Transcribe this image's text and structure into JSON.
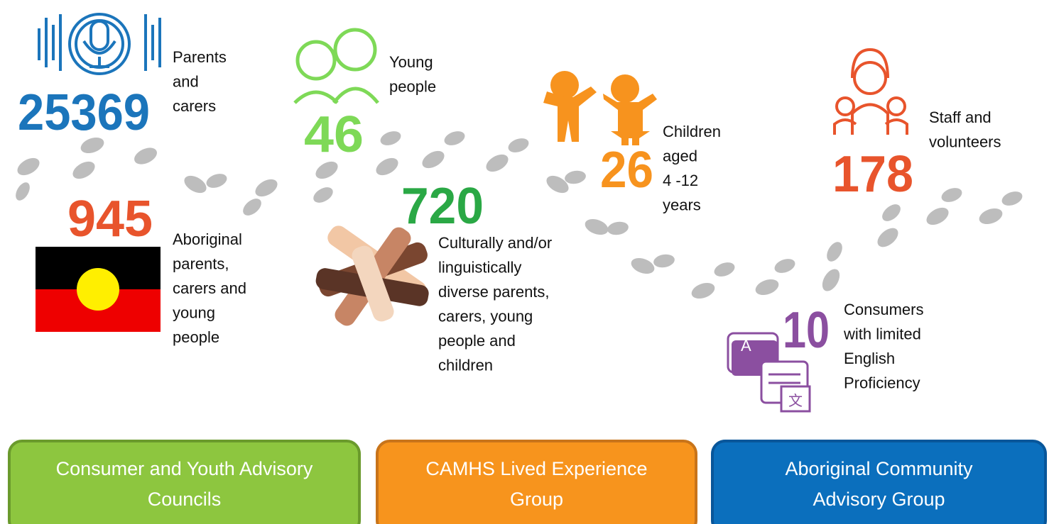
{
  "stats": [
    {
      "value": 25369,
      "color": "#1b75bb",
      "label": [
        "Parents",
        "and",
        "carers"
      ]
    },
    {
      "value": 46,
      "color": "#7ed957",
      "label": [
        "Young",
        "people"
      ]
    },
    {
      "value": 26,
      "color": "#f7931e",
      "label": [
        "Children",
        "aged",
        "4 -12",
        "years"
      ]
    },
    {
      "value": 178,
      "color": "#e8542c",
      "label": [
        "Staff and",
        "volunteers"
      ]
    },
    {
      "value": 945,
      "color": "#e8542c",
      "label": [
        "Aboriginal",
        "parents,",
        "carers and",
        "young",
        "people"
      ]
    },
    {
      "value": 720,
      "color": "#2aa845",
      "label": [
        "Culturally and/or",
        "linguistically",
        "diverse parents,",
        "carers, young",
        "people and",
        "children"
      ]
    },
    {
      "value": 10,
      "color": "#8b4fa0",
      "label": [
        "Consumers",
        "with limited",
        "English",
        "Proficiency"
      ]
    }
  ],
  "groups": [
    {
      "label": [
        "Consumer and Youth Advisory",
        "Councils"
      ],
      "color": "#8dc63f",
      "border": "#6a9a2c"
    },
    {
      "label": [
        "CAMHS Lived Experience",
        "Group"
      ],
      "color": "#f7941d",
      "border": "#c8741a"
    },
    {
      "label": [
        "Aboriginal Community",
        "Advisory Group"
      ],
      "color": "#0b6fbd",
      "border": "#08569a"
    }
  ]
}
